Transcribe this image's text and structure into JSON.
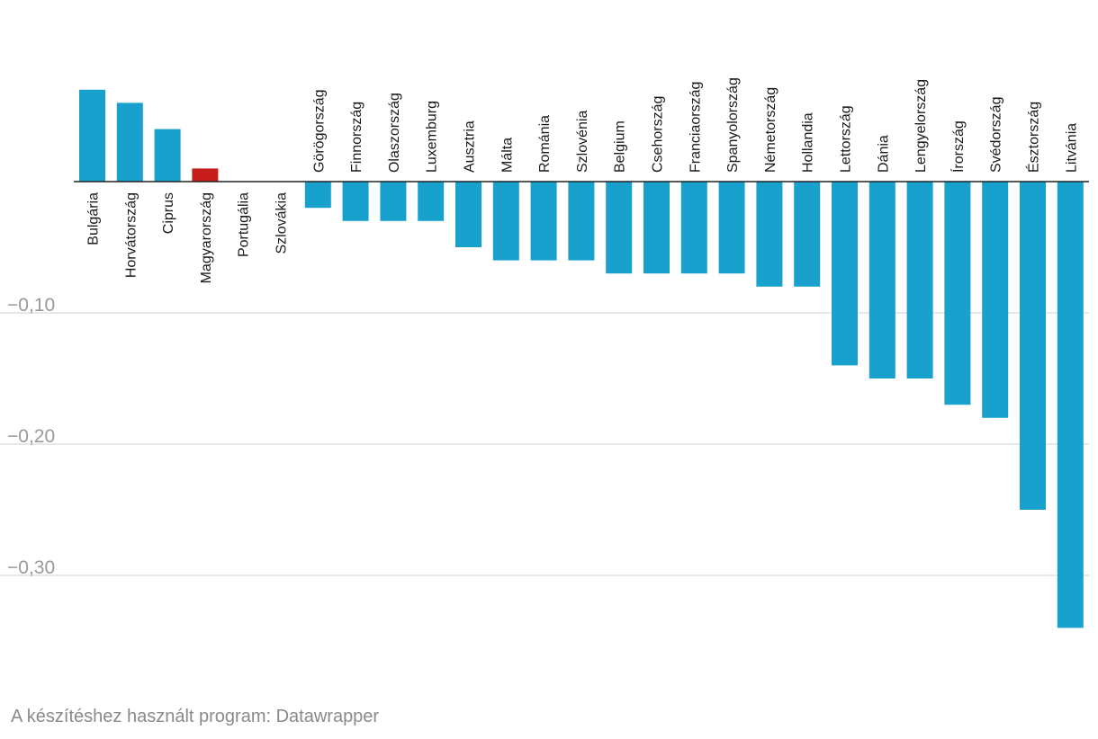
{
  "chart_data": {
    "type": "bar",
    "title": "",
    "xlabel": "",
    "ylabel": "",
    "ylim": [
      -0.35,
      0.07
    ],
    "yticks": [
      -0.1,
      -0.2,
      -0.3
    ],
    "ytick_labels": [
      "−0,10",
      "−0,20",
      "−0,30"
    ],
    "gridlines": true,
    "categories": [
      "Bulgária",
      "Horvátország",
      "Ciprus",
      "Magyarország",
      "Portugália",
      "Szlovákia",
      "Görögország",
      "Finnország",
      "Olaszország",
      "Luxemburg",
      "Ausztria",
      "Málta",
      "Románia",
      "Szlovénia",
      "Belgium",
      "Csehország",
      "Franciaország",
      "Spanyolország",
      "Németország",
      "Hollandia",
      "Lettország",
      "Dánia",
      "Lengyelország",
      "Írország",
      "Svédország",
      "Észtország",
      "Litvánia"
    ],
    "values": [
      0.07,
      0.06,
      0.04,
      0.01,
      0.0,
      0.0,
      -0.02,
      -0.03,
      -0.03,
      -0.03,
      -0.05,
      -0.06,
      -0.06,
      -0.06,
      -0.07,
      -0.07,
      -0.07,
      -0.07,
      -0.08,
      -0.08,
      -0.14,
      -0.15,
      -0.15,
      -0.17,
      -0.18,
      -0.25,
      -0.34
    ],
    "highlight_category": "Magyarország",
    "colors": {
      "default": "#18a1cd",
      "highlight": "#c71e1d",
      "grid": "#e0e0e0",
      "baseline": "#222222"
    }
  },
  "footer": {
    "credit": "A készítéshez használt program: Datawrapper"
  }
}
